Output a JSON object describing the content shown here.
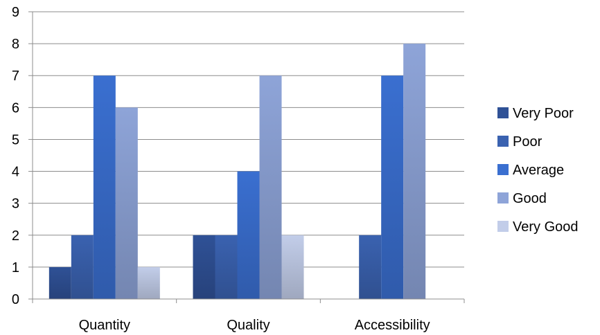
{
  "chart_data": {
    "type": "bar",
    "title": "",
    "xlabel": "",
    "ylabel": "",
    "categories": [
      "Quantity",
      "Quality",
      "Accessibility"
    ],
    "series": [
      {
        "name": "Very Poor",
        "values": [
          1,
          2,
          0
        ],
        "color": "#2F5196"
      },
      {
        "name": "Poor",
        "values": [
          2,
          2,
          2
        ],
        "color": "#3A62B0"
      },
      {
        "name": "Average",
        "values": [
          7,
          4,
          7
        ],
        "color": "#3A6FD0"
      },
      {
        "name": "Good",
        "values": [
          6,
          7,
          8
        ],
        "color": "#8EA4D8"
      },
      {
        "name": "Very Good",
        "values": [
          1,
          2,
          0
        ],
        "color": "#C2CDE9"
      }
    ],
    "ylim": [
      0,
      9
    ],
    "yticks": [
      "0",
      "1",
      "2",
      "3",
      "4",
      "5",
      "6",
      "7",
      "8",
      "9"
    ],
    "grid": true,
    "legend_position": "right"
  }
}
